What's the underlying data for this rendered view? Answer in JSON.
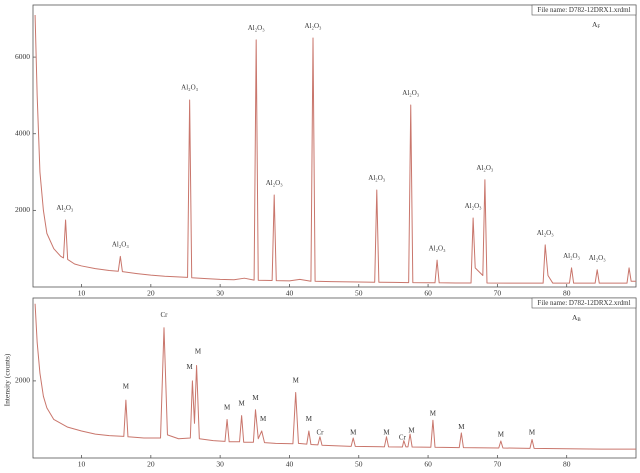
{
  "chart_data": [
    {
      "type": "line",
      "file_name": "File name: D782-12DRX1.xrdml",
      "label": {
        "main": "A",
        "sub": "F"
      },
      "color": "#c9766c",
      "xlim": [
        3,
        90
      ],
      "ylim": [
        0,
        7360
      ],
      "xticks": [
        10,
        20,
        30,
        40,
        50,
        60,
        70,
        80
      ],
      "yticks": [
        2000,
        4000,
        6000
      ],
      "x": [
        3.3,
        3.6,
        4.0,
        4.5,
        5,
        6,
        7,
        7.4,
        7.7,
        8.0,
        9,
        10,
        12,
        14,
        15.3,
        15.6,
        15.9,
        18,
        20,
        22,
        25.3,
        25.6,
        25.9,
        28,
        30,
        32,
        33.5,
        34.9,
        35.2,
        35.5,
        37.5,
        37.8,
        38.1,
        40,
        41.5,
        43.1,
        43.4,
        43.7,
        46,
        50,
        52.3,
        52.6,
        52.9,
        55,
        57.2,
        57.5,
        57.8,
        60,
        61.0,
        61.3,
        61.6,
        64,
        66.2,
        66.5,
        66.8,
        67.9,
        68.2,
        68.5,
        72,
        76.6,
        76.9,
        77.3,
        78,
        80.4,
        80.7,
        81.0,
        84.1,
        84.4,
        84.7,
        88.7,
        89.0,
        89.3,
        90
      ],
      "values": [
        7100,
        5000,
        3000,
        2000,
        1400,
        1000,
        800,
        760,
        1750,
        720,
        600,
        550,
        480,
        430,
        410,
        800,
        400,
        350,
        310,
        280,
        250,
        4880,
        240,
        220,
        200,
        190,
        230,
        180,
        6450,
        175,
        170,
        2400,
        165,
        160,
        200,
        150,
        6500,
        150,
        140,
        130,
        125,
        2530,
        125,
        120,
        115,
        4750,
        115,
        110,
        110,
        700,
        110,
        105,
        105,
        1800,
        500,
        300,
        2800,
        105,
        100,
        100,
        1100,
        300,
        100,
        100,
        500,
        100,
        100,
        450,
        100,
        100,
        500,
        150,
        150
      ],
      "annotations": [
        {
          "text": "Al₂O₃",
          "x": 7.6,
          "y": 2050
        },
        {
          "text": "Al₂O₃",
          "x": 15.6,
          "y": 1100
        },
        {
          "text": "Al₂O₃",
          "x": 25.6,
          "y": 5200
        },
        {
          "text": "Al₂O₃",
          "x": 35.2,
          "y": 6750
        },
        {
          "text": "Al₂O₃",
          "x": 37.8,
          "y": 2700
        },
        {
          "text": "Al₂O₃",
          "x": 43.4,
          "y": 6800
        },
        {
          "text": "Al₂O₃",
          "x": 52.6,
          "y": 2830
        },
        {
          "text": "Al₂O₃",
          "x": 57.5,
          "y": 5050
        },
        {
          "text": "Al₂O₃",
          "x": 61.3,
          "y": 1000
        },
        {
          "text": "Al₂O₃",
          "x": 66.5,
          "y": 2100
        },
        {
          "text": "Al₂O₃",
          "x": 68.2,
          "y": 3100
        },
        {
          "text": "Al₂O₃",
          "x": 76.9,
          "y": 1400
        },
        {
          "text": "Al₂O₃",
          "x": 80.7,
          "y": 800
        },
        {
          "text": "Al₂O₃",
          "x": 84.4,
          "y": 750
        }
      ]
    },
    {
      "type": "line",
      "file_name": "File name: D782-12DRX2.xrdml",
      "label": {
        "main": "A",
        "sub": "B"
      },
      "ylabel": "Intensity (counts)",
      "color": "#c9766c",
      "xlim": [
        3,
        90
      ],
      "ylim": [
        0,
        4150
      ],
      "xticks": [
        10,
        20,
        30,
        40,
        50,
        60,
        70,
        80
      ],
      "yticks": [
        2000
      ],
      "x": [
        3.3,
        3.6,
        4,
        4.5,
        5,
        6,
        8,
        10,
        12,
        14,
        16.1,
        16.4,
        16.7,
        19,
        21.4,
        21.9,
        22.4,
        24,
        25.7,
        26.0,
        26.3,
        26.6,
        27,
        29,
        30.7,
        31.0,
        31.3,
        32.8,
        33.1,
        33.4,
        34.8,
        35.1,
        35.5,
        36.0,
        36.4,
        38,
        40.5,
        40.9,
        41.3,
        42.5,
        42.8,
        43.1,
        44.1,
        44.4,
        44.7,
        48.9,
        49.2,
        49.5,
        53.7,
        54.0,
        54.3,
        56.3,
        56.5,
        56.8,
        57.1,
        57.4,
        57.7,
        60.4,
        60.7,
        61.0,
        64.5,
        64.8,
        65.1,
        70.2,
        70.5,
        70.8,
        74.7,
        75.0,
        75.3,
        80,
        85,
        90
      ],
      "values": [
        4000,
        3000,
        2200,
        1600,
        1300,
        1000,
        800,
        700,
        620,
        580,
        560,
        1500,
        550,
        520,
        520,
        3380,
        600,
        500,
        520,
        2000,
        900,
        2400,
        500,
        450,
        430,
        1000,
        420,
        420,
        1100,
        410,
        410,
        1250,
        500,
        700,
        400,
        380,
        370,
        1700,
        380,
        360,
        700,
        350,
        340,
        550,
        330,
        300,
        520,
        300,
        290,
        550,
        290,
        285,
        450,
        290,
        290,
        620,
        285,
        280,
        980,
        280,
        270,
        650,
        270,
        260,
        440,
        260,
        250,
        480,
        250,
        240,
        230,
        230
      ],
      "annotations": [
        {
          "text": "M",
          "x": 16.4,
          "y": 1850
        },
        {
          "text": "Cr",
          "x": 21.9,
          "y": 3700
        },
        {
          "text": "M",
          "x": 25.6,
          "y": 2350
        },
        {
          "text": "M",
          "x": 26.8,
          "y": 2750
        },
        {
          "text": "M",
          "x": 31.0,
          "y": 1300
        },
        {
          "text": "M",
          "x": 33.1,
          "y": 1400
        },
        {
          "text": "M",
          "x": 35.1,
          "y": 1550
        },
        {
          "text": "M",
          "x": 36.2,
          "y": 1000
        },
        {
          "text": "M",
          "x": 40.9,
          "y": 2000
        },
        {
          "text": "M",
          "x": 42.8,
          "y": 1000
        },
        {
          "text": "Cr",
          "x": 44.4,
          "y": 650
        },
        {
          "text": "M",
          "x": 49.2,
          "y": 650
        },
        {
          "text": "M",
          "x": 54.0,
          "y": 650
        },
        {
          "text": "Cr",
          "x": 56.3,
          "y": 520
        },
        {
          "text": "M",
          "x": 57.6,
          "y": 700
        },
        {
          "text": "M",
          "x": 60.7,
          "y": 1150
        },
        {
          "text": "M",
          "x": 64.8,
          "y": 800
        },
        {
          "text": "M",
          "x": 70.5,
          "y": 600
        },
        {
          "text": "M",
          "x": 75.0,
          "y": 650
        }
      ]
    }
  ]
}
